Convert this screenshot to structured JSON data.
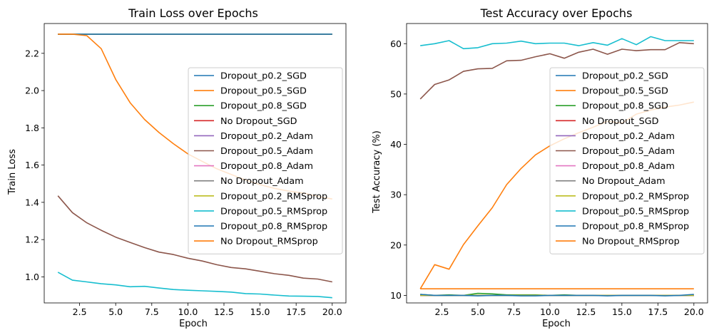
{
  "chart_data": [
    {
      "type": "line",
      "title": "Train Loss over Epochs",
      "xlabel": "Epoch",
      "ylabel": "Train Loss",
      "xlim": [
        0.05,
        20.95
      ],
      "ylim": [
        0.86,
        2.36
      ],
      "xticks": [
        "2.5",
        "5.0",
        "7.5",
        "10.0",
        "12.5",
        "15.0",
        "17.5",
        "20.0"
      ],
      "yticks": [
        "1.0",
        "1.2",
        "1.4",
        "1.6",
        "1.8",
        "2.0",
        "2.2"
      ],
      "legend_position": "center-right",
      "x": [
        1,
        2,
        3,
        4,
        5,
        6,
        7,
        8,
        9,
        10,
        11,
        12,
        13,
        14,
        15,
        16,
        17,
        18,
        19,
        20
      ],
      "series": [
        {
          "name": "Dropout_p0.2_SGD",
          "color": "#1f77b4",
          "values": [
            2.303,
            2.303,
            2.303,
            2.303,
            2.303,
            2.303,
            2.303,
            2.303,
            2.303,
            2.303,
            2.303,
            2.303,
            2.303,
            2.303,
            2.303,
            2.303,
            2.303,
            2.303,
            2.303,
            2.303
          ]
        },
        {
          "name": "Dropout_p0.5_SGD",
          "color": "#ff7f0e",
          "values": [
            2.303,
            2.303,
            2.303,
            2.303,
            2.303,
            2.303,
            2.303,
            2.303,
            2.303,
            2.303,
            2.303,
            2.303,
            2.303,
            2.303,
            2.303,
            2.303,
            2.303,
            2.303,
            2.303,
            2.303
          ]
        },
        {
          "name": "Dropout_p0.8_SGD",
          "color": "#2ca02c",
          "values": [
            2.303,
            2.303,
            2.303,
            2.303,
            2.303,
            2.303,
            2.303,
            2.303,
            2.303,
            2.303,
            2.303,
            2.303,
            2.303,
            2.303,
            2.303,
            2.303,
            2.303,
            2.303,
            2.303,
            2.303
          ]
        },
        {
          "name": "No Dropout_SGD",
          "color": "#d62728",
          "values": [
            2.303,
            2.303,
            2.303,
            2.303,
            2.303,
            2.303,
            2.303,
            2.303,
            2.303,
            2.303,
            2.303,
            2.303,
            2.303,
            2.303,
            2.303,
            2.303,
            2.303,
            2.303,
            2.303,
            2.303
          ]
        },
        {
          "name": "Dropout_p0.2_Adam",
          "color": "#9467bd",
          "values": [
            2.303,
            2.303,
            2.303,
            2.303,
            2.303,
            2.303,
            2.303,
            2.303,
            2.303,
            2.303,
            2.303,
            2.303,
            2.303,
            2.303,
            2.303,
            2.303,
            2.303,
            2.303,
            2.303,
            2.303
          ]
        },
        {
          "name": "Dropout_p0.5_Adam",
          "color": "#8c564b",
          "values": [
            1.435,
            1.345,
            1.29,
            1.25,
            1.213,
            1.185,
            1.157,
            1.133,
            1.12,
            1.1,
            1.085,
            1.065,
            1.05,
            1.043,
            1.03,
            1.017,
            1.008,
            0.993,
            0.988,
            0.973
          ]
        },
        {
          "name": "Dropout_p0.8_Adam",
          "color": "#e377c2",
          "values": [
            2.303,
            2.303,
            2.303,
            2.303,
            2.303,
            2.303,
            2.303,
            2.303,
            2.303,
            2.303,
            2.303,
            2.303,
            2.303,
            2.303,
            2.303,
            2.303,
            2.303,
            2.303,
            2.303,
            2.303
          ]
        },
        {
          "name": "No Dropout_Adam",
          "color": "#7f7f7f",
          "values": [
            2.303,
            2.303,
            2.303,
            2.303,
            2.303,
            2.303,
            2.303,
            2.303,
            2.303,
            2.303,
            2.303,
            2.303,
            2.303,
            2.303,
            2.303,
            2.303,
            2.303,
            2.303,
            2.303,
            2.303
          ]
        },
        {
          "name": "Dropout_p0.2_RMSprop",
          "color": "#bcbd22",
          "values": [
            2.303,
            2.303,
            2.303,
            2.303,
            2.303,
            2.303,
            2.303,
            2.303,
            2.303,
            2.303,
            2.303,
            2.303,
            2.303,
            2.303,
            2.303,
            2.303,
            2.303,
            2.303,
            2.303,
            2.303
          ]
        },
        {
          "name": "Dropout_p0.5_RMSprop",
          "color": "#17becf",
          "values": [
            1.025,
            0.982,
            0.973,
            0.963,
            0.957,
            0.947,
            0.949,
            0.94,
            0.932,
            0.928,
            0.925,
            0.922,
            0.918,
            0.91,
            0.908,
            0.902,
            0.897,
            0.896,
            0.895,
            0.888
          ]
        },
        {
          "name": "Dropout_p0.8_RMSprop",
          "color": "#1f77b4",
          "values": [
            2.303,
            2.303,
            2.303,
            2.303,
            2.303,
            2.303,
            2.303,
            2.303,
            2.303,
            2.303,
            2.303,
            2.303,
            2.303,
            2.303,
            2.303,
            2.303,
            2.303,
            2.303,
            2.303,
            2.303
          ]
        },
        {
          "name": "No Dropout_RMSprop",
          "color": "#ff7f0e",
          "values": [
            2.303,
            2.303,
            2.295,
            2.225,
            2.06,
            1.935,
            1.845,
            1.775,
            1.715,
            1.66,
            1.62,
            1.58,
            1.55,
            1.52,
            1.495,
            1.475,
            1.46,
            1.45,
            1.432,
            1.418
          ]
        }
      ]
    },
    {
      "type": "line",
      "title": "Test Accuracy over Epochs",
      "xlabel": "Epoch",
      "ylabel": "Test Accuracy (%)",
      "xlim": [
        0.05,
        20.95
      ],
      "ylim": [
        8.5,
        64.0
      ],
      "xticks": [
        "2.5",
        "5.0",
        "7.5",
        "10.0",
        "12.5",
        "15.0",
        "17.5",
        "20.0"
      ],
      "yticks": [
        "10",
        "20",
        "30",
        "40",
        "50",
        "60"
      ],
      "legend_position": "center-right",
      "x": [
        1,
        2,
        3,
        4,
        5,
        6,
        7,
        8,
        9,
        10,
        11,
        12,
        13,
        14,
        15,
        16,
        17,
        18,
        19,
        20
      ],
      "series": [
        {
          "name": "Dropout_p0.2_SGD",
          "color": "#1f77b4",
          "values": [
            10.0,
            10.0,
            10.0,
            10.0,
            10.0,
            10.0,
            10.0,
            10.0,
            10.0,
            10.0,
            10.0,
            10.0,
            10.0,
            10.0,
            10.0,
            10.0,
            10.0,
            10.0,
            10.0,
            10.0
          ]
        },
        {
          "name": "Dropout_p0.5_SGD",
          "color": "#ff7f0e",
          "values": [
            11.3,
            11.3,
            11.3,
            11.3,
            11.3,
            11.3,
            11.3,
            11.3,
            11.3,
            11.3,
            11.3,
            11.3,
            11.3,
            11.3,
            11.3,
            11.3,
            11.3,
            11.3,
            11.3,
            11.3
          ]
        },
        {
          "name": "Dropout_p0.8_SGD",
          "color": "#2ca02c",
          "values": [
            10.2,
            10.0,
            10.1,
            10.0,
            10.4,
            10.3,
            10.1,
            10.1,
            10.1,
            10.0,
            10.1,
            10.0,
            10.0,
            10.0,
            10.0,
            10.0,
            10.0,
            10.0,
            10.0,
            10.0
          ]
        },
        {
          "name": "No Dropout_SGD",
          "color": "#d62728",
          "values": [
            10.0,
            10.0,
            10.0,
            10.0,
            10.0,
            10.0,
            10.0,
            10.0,
            10.0,
            10.0,
            10.0,
            10.0,
            10.0,
            10.0,
            10.0,
            10.0,
            10.0,
            10.0,
            10.0,
            10.0
          ]
        },
        {
          "name": "Dropout_p0.2_Adam",
          "color": "#9467bd",
          "values": [
            10.0,
            10.0,
            10.0,
            10.0,
            10.0,
            10.0,
            10.0,
            10.0,
            10.0,
            10.0,
            10.0,
            10.0,
            10.0,
            10.0,
            10.0,
            10.0,
            10.0,
            10.0,
            10.0,
            10.0
          ]
        },
        {
          "name": "Dropout_p0.5_Adam",
          "color": "#8c564b",
          "values": [
            49.0,
            51.9,
            52.8,
            54.5,
            55.0,
            55.1,
            56.6,
            56.7,
            57.4,
            58.0,
            57.1,
            58.3,
            58.9,
            57.9,
            58.9,
            58.6,
            58.8,
            58.8,
            60.2,
            60.0
          ]
        },
        {
          "name": "Dropout_p0.8_Adam",
          "color": "#e377c2",
          "values": [
            10.0,
            10.0,
            10.0,
            10.0,
            10.0,
            10.0,
            10.0,
            10.0,
            10.0,
            10.0,
            10.0,
            10.0,
            10.0,
            10.0,
            10.0,
            10.0,
            10.0,
            10.0,
            10.0,
            10.0
          ]
        },
        {
          "name": "No Dropout_Adam",
          "color": "#7f7f7f",
          "values": [
            10.0,
            10.0,
            10.0,
            10.0,
            10.0,
            10.0,
            10.0,
            10.0,
            10.0,
            10.0,
            10.0,
            10.0,
            10.0,
            10.0,
            10.0,
            10.0,
            10.0,
            10.0,
            10.0,
            10.0
          ]
        },
        {
          "name": "Dropout_p0.2_RMSprop",
          "color": "#bcbd22",
          "values": [
            10.0,
            10.0,
            10.0,
            10.0,
            10.0,
            10.0,
            10.0,
            10.0,
            10.0,
            10.0,
            10.0,
            10.0,
            10.0,
            10.0,
            10.0,
            10.0,
            10.0,
            10.0,
            10.0,
            10.0
          ]
        },
        {
          "name": "Dropout_p0.5_RMSprop",
          "color": "#17becf",
          "values": [
            59.6,
            60.0,
            60.6,
            59.0,
            59.2,
            60.0,
            60.1,
            60.5,
            60.0,
            60.1,
            60.1,
            59.6,
            60.2,
            59.7,
            61.0,
            59.8,
            61.4,
            60.6,
            60.6,
            60.6
          ]
        },
        {
          "name": "Dropout_p0.8_RMSprop",
          "color": "#1f77b4",
          "values": [
            10.2,
            10.0,
            10.0,
            10.0,
            9.9,
            10.0,
            10.0,
            9.9,
            9.9,
            10.0,
            10.0,
            10.0,
            10.0,
            9.9,
            10.0,
            10.0,
            10.0,
            9.9,
            10.0,
            10.2
          ]
        },
        {
          "name": "No Dropout_RMSprop",
          "color": "#ff7f0e",
          "values": [
            11.3,
            16.1,
            15.2,
            20.1,
            23.8,
            27.4,
            32.0,
            35.2,
            37.9,
            39.7,
            41.1,
            42.3,
            43.4,
            44.6,
            44.2,
            46.0,
            46.8,
            47.4,
            47.8,
            48.4
          ]
        }
      ]
    }
  ]
}
